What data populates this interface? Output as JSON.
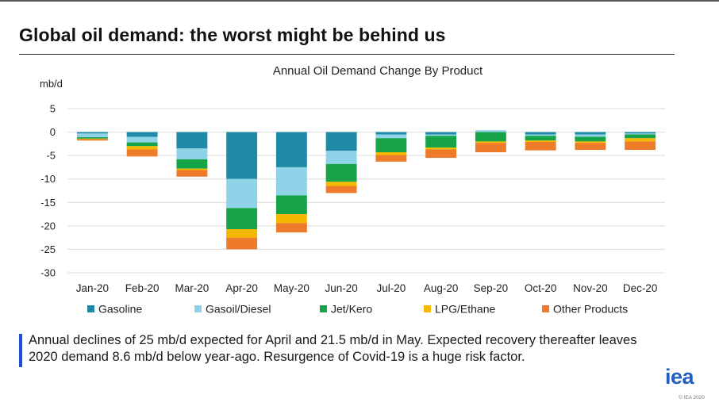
{
  "slide": {
    "title": "Global oil demand: the worst might be behind us",
    "callout": "Annual declines of 25 mb/d expected for April and 21.5 mb/d in May. Expected recovery thereafter leaves 2020 demand 8.6 mb/d below year-ago. Resurgence of Covid-19 is a huge risk factor.",
    "logo": "iea",
    "copyright": "© IEA 2020"
  },
  "chart_data": {
    "type": "bar",
    "stacked": true,
    "title": "Annual Oil Demand Change By Product",
    "ylabel": "mb/d",
    "xlabel": "",
    "ylim": [
      -30,
      5
    ],
    "yticks": [
      5,
      0,
      -5,
      -10,
      -15,
      -20,
      -25,
      -30
    ],
    "grid": true,
    "legend_position": "bottom",
    "categories": [
      "Jan-20",
      "Feb-20",
      "Mar-20",
      "Apr-20",
      "May-20",
      "Jun-20",
      "Jul-20",
      "Aug-20",
      "Sep-20",
      "Oct-20",
      "Nov-20",
      "Dec-20"
    ],
    "series": [
      {
        "name": "Gasoline",
        "color": "#1F8AA5",
        "values": [
          -0.3,
          -1.0,
          -3.5,
          -10.0,
          -7.5,
          -4.0,
          -0.5,
          -0.5,
          0.0,
          -0.5,
          -0.5,
          -0.3
        ]
      },
      {
        "name": "Gasoil/Diesel",
        "color": "#8FD3E8",
        "values": [
          -0.8,
          -1.2,
          -2.3,
          -6.2,
          -6.0,
          -2.8,
          -0.8,
          -0.3,
          0.4,
          -0.3,
          -0.5,
          -0.2
        ]
      },
      {
        "name": "Jet/Kero",
        "color": "#17A348",
        "values": [
          -0.3,
          -0.8,
          -2.0,
          -4.5,
          -4.0,
          -3.8,
          -3.0,
          -2.5,
          -2.0,
          -1.0,
          -1.0,
          -0.8
        ]
      },
      {
        "name": "LPG/Ethane",
        "color": "#F5B800",
        "values": [
          -0.1,
          -0.7,
          -0.3,
          -1.8,
          -1.9,
          -0.9,
          -0.6,
          -0.4,
          -0.3,
          -0.3,
          -0.3,
          -0.7
        ]
      },
      {
        "name": "Other Products",
        "color": "#EE7B2A",
        "values": [
          -0.3,
          -1.5,
          -1.4,
          -2.5,
          -2.0,
          -1.5,
          -1.4,
          -1.8,
          -2.0,
          -1.8,
          -1.5,
          -1.8
        ]
      }
    ]
  }
}
